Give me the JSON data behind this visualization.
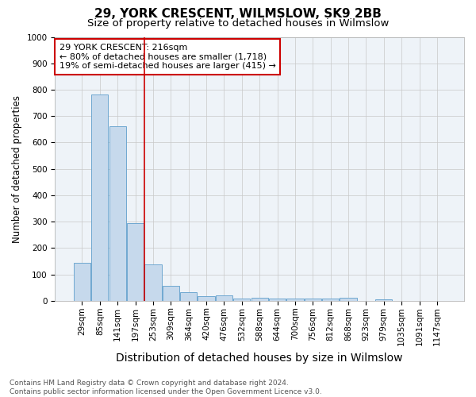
{
  "title": "29, YORK CRESCENT, WILMSLOW, SK9 2BB",
  "subtitle": "Size of property relative to detached houses in Wilmslow",
  "xlabel": "Distribution of detached houses by size in Wilmslow",
  "ylabel": "Number of detached properties",
  "bar_labels": [
    "29sqm",
    "85sqm",
    "141sqm",
    "197sqm",
    "253sqm",
    "309sqm",
    "364sqm",
    "420sqm",
    "476sqm",
    "532sqm",
    "588sqm",
    "644sqm",
    "700sqm",
    "756sqm",
    "812sqm",
    "868sqm",
    "923sqm",
    "979sqm",
    "1035sqm",
    "1091sqm",
    "1147sqm"
  ],
  "bar_values": [
    143,
    783,
    660,
    295,
    137,
    57,
    33,
    18,
    20,
    9,
    10,
    9,
    9,
    9,
    9,
    10,
    0,
    5,
    0,
    0,
    0
  ],
  "bar_color": "#c6d9ec",
  "bar_edge_color": "#6fa8d0",
  "vline_color": "#cc0000",
  "vline_x": 3.5,
  "annotation_text": "29 YORK CRESCENT: 216sqm\n← 80% of detached houses are smaller (1,718)\n19% of semi-detached houses are larger (415) →",
  "annotation_box_color": "white",
  "annotation_box_edge": "#cc0000",
  "ylim": [
    0,
    1000
  ],
  "yticks": [
    0,
    100,
    200,
    300,
    400,
    500,
    600,
    700,
    800,
    900,
    1000
  ],
  "footnote": "Contains HM Land Registry data © Crown copyright and database right 2024.\nContains public sector information licensed under the Open Government Licence v3.0.",
  "title_fontsize": 11,
  "subtitle_fontsize": 9.5,
  "xlabel_fontsize": 10,
  "ylabel_fontsize": 8.5,
  "tick_fontsize": 7.5,
  "annotation_fontsize": 8,
  "footnote_fontsize": 6.5,
  "bg_color": "#eef3f8"
}
